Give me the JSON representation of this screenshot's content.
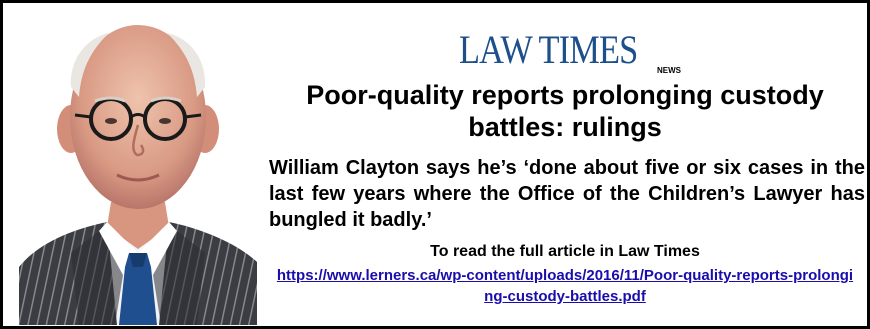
{
  "masthead": {
    "logo_text": "LAW TIMES",
    "section_label": "NEWS",
    "logo_color": "#1d4f8a"
  },
  "article": {
    "headline": "Poor-quality reports prolonging custody battles: rulings",
    "quote": "William Clayton says he’s ‘done about five or six cases in the last few years where the Office of the Children’s Lawyer has bungled it badly.’",
    "cta": "To read the full article in Law Times",
    "link_text": "https://www.lerners.ca/wp-content/uploads/2016/11/Poor-quality-reports-prolonging-custody-battles.pdf",
    "link_color": "#1a0dab"
  },
  "photo": {
    "icon": "portrait-photo"
  }
}
